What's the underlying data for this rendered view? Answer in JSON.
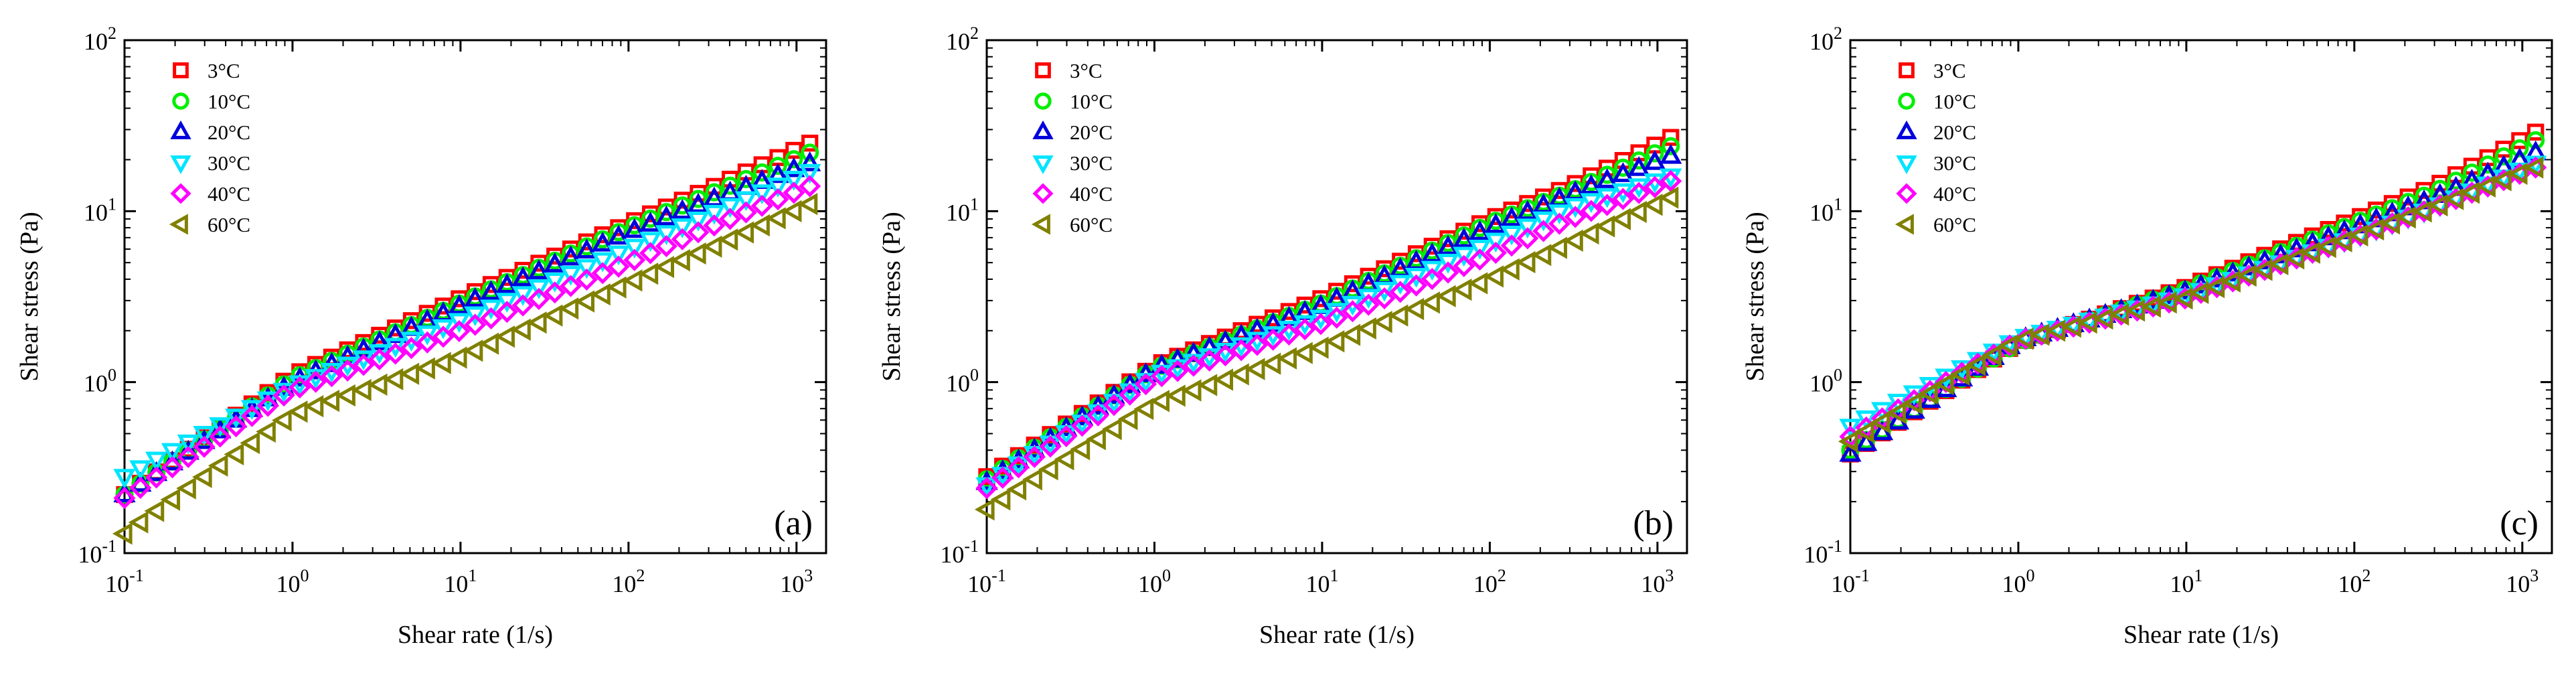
{
  "chart_data": [
    {
      "type": "scatter",
      "panel_label": "(a)",
      "xlabel": "Shear rate (1/s)",
      "ylabel": "Shear stress (Pa)",
      "xscale": "log",
      "yscale": "log",
      "xlim": [
        0.1,
        1500
      ],
      "ylim": [
        0.1,
        100
      ],
      "xticks": [
        {
          "base": "10",
          "exp": "-1"
        },
        {
          "base": "10",
          "exp": "0"
        },
        {
          "base": "10",
          "exp": "1"
        },
        {
          "base": "10",
          "exp": "2"
        },
        {
          "base": "10",
          "exp": "3"
        }
      ],
      "yticks": [
        {
          "base": "10",
          "exp": "-1"
        },
        {
          "base": "10",
          "exp": "0"
        },
        {
          "base": "10",
          "exp": "1"
        },
        {
          "base": "10",
          "exp": "2"
        }
      ],
      "legend_position": "top-left",
      "x": [
        0.1,
        1,
        10,
        100,
        300,
        1200
      ],
      "series": [
        {
          "name": "3°C",
          "values": [
            0.22,
            1.1,
            3.1,
            8.5,
            13.5,
            25.0
          ]
        },
        {
          "name": "10°C",
          "values": [
            0.22,
            1.05,
            2.9,
            8.0,
            12.5,
            22.0
          ]
        },
        {
          "name": "20°C",
          "values": [
            0.22,
            1.0,
            2.8,
            7.5,
            11.5,
            19.0
          ]
        },
        {
          "name": "30°C",
          "values": [
            0.28,
            0.95,
            2.3,
            6.0,
            9.5,
            17.0
          ]
        },
        {
          "name": "40°C",
          "values": [
            0.21,
            0.9,
            2.0,
            5.0,
            8.0,
            14.0
          ]
        },
        {
          "name": "60°C",
          "values": [
            0.13,
            0.65,
            1.4,
            3.8,
            6.0,
            11.0
          ]
        }
      ]
    },
    {
      "type": "scatter",
      "panel_label": "(b)",
      "xlabel": "Shear rate (1/s)",
      "ylabel": "Shear stress (Pa)",
      "xscale": "log",
      "yscale": "log",
      "xlim": [
        0.1,
        1500
      ],
      "ylim": [
        0.1,
        100
      ],
      "xticks": [
        {
          "base": "10",
          "exp": "-1"
        },
        {
          "base": "10",
          "exp": "0"
        },
        {
          "base": "10",
          "exp": "1"
        },
        {
          "base": "10",
          "exp": "2"
        },
        {
          "base": "10",
          "exp": "3"
        }
      ],
      "yticks": [
        {
          "base": "10",
          "exp": "-1"
        },
        {
          "base": "10",
          "exp": "0"
        },
        {
          "base": "10",
          "exp": "1"
        },
        {
          "base": "10",
          "exp": "2"
        }
      ],
      "legend_position": "top-left",
      "x": [
        0.1,
        1,
        10,
        100,
        300,
        1200
      ],
      "series": [
        {
          "name": "3°C",
          "values": [
            0.28,
            1.25,
            3.1,
            9.0,
            14.0,
            27.0
          ]
        },
        {
          "name": "10°C",
          "values": [
            0.27,
            1.2,
            2.9,
            8.5,
            13.0,
            24.0
          ]
        },
        {
          "name": "20°C",
          "values": [
            0.26,
            1.2,
            2.8,
            8.0,
            12.5,
            21.0
          ]
        },
        {
          "name": "30°C",
          "values": [
            0.25,
            1.1,
            2.4,
            6.5,
            10.5,
            16.0
          ]
        },
        {
          "name": "40°C",
          "values": [
            0.24,
            1.05,
            2.2,
            5.5,
            9.0,
            15.0
          ]
        },
        {
          "name": "60°C",
          "values": [
            0.18,
            0.75,
            1.6,
            4.0,
            6.5,
            12.0
          ]
        }
      ]
    },
    {
      "type": "scatter",
      "panel_label": "(c)",
      "xlabel": "Shear rate (1/s)",
      "ylabel": "Shear stress (Pa)",
      "xscale": "log",
      "yscale": "log",
      "xlim": [
        0.1,
        1500
      ],
      "ylim": [
        0.1,
        100
      ],
      "xticks": [
        {
          "base": "10",
          "exp": "-1"
        },
        {
          "base": "10",
          "exp": "0"
        },
        {
          "base": "10",
          "exp": "1"
        },
        {
          "base": "10",
          "exp": "2"
        },
        {
          "base": "10",
          "exp": "3"
        }
      ],
      "yticks": [
        {
          "base": "10",
          "exp": "-1"
        },
        {
          "base": "10",
          "exp": "0"
        },
        {
          "base": "10",
          "exp": "1"
        },
        {
          "base": "10",
          "exp": "2"
        }
      ],
      "legend_position": "top-left",
      "x": [
        0.1,
        1,
        10,
        100,
        300,
        1200
      ],
      "series": [
        {
          "name": "3°C",
          "values": [
            0.38,
            1.7,
            3.6,
            9.0,
            14.0,
            29.0
          ]
        },
        {
          "name": "10°C",
          "values": [
            0.4,
            1.7,
            3.5,
            8.5,
            13.0,
            26.0
          ]
        },
        {
          "name": "20°C",
          "values": [
            0.38,
            1.75,
            3.4,
            8.0,
            12.0,
            22.0
          ]
        },
        {
          "name": "30°C",
          "values": [
            0.55,
            1.8,
            3.2,
            7.0,
            10.5,
            19.0
          ]
        },
        {
          "name": "40°C",
          "values": [
            0.48,
            1.75,
            3.1,
            7.0,
            10.5,
            18.0
          ]
        },
        {
          "name": "60°C",
          "values": [
            0.45,
            1.75,
            3.1,
            7.0,
            10.5,
            18.0
          ]
        }
      ]
    }
  ],
  "style": {
    "series_colors": [
      "#ff0000",
      "#00ee00",
      "#0000dd",
      "#00e5ff",
      "#ff00ff",
      "#808000"
    ],
    "series_markers": [
      "square",
      "circle",
      "triangle-up",
      "triangle-down",
      "diamond",
      "triangle-left"
    ]
  }
}
